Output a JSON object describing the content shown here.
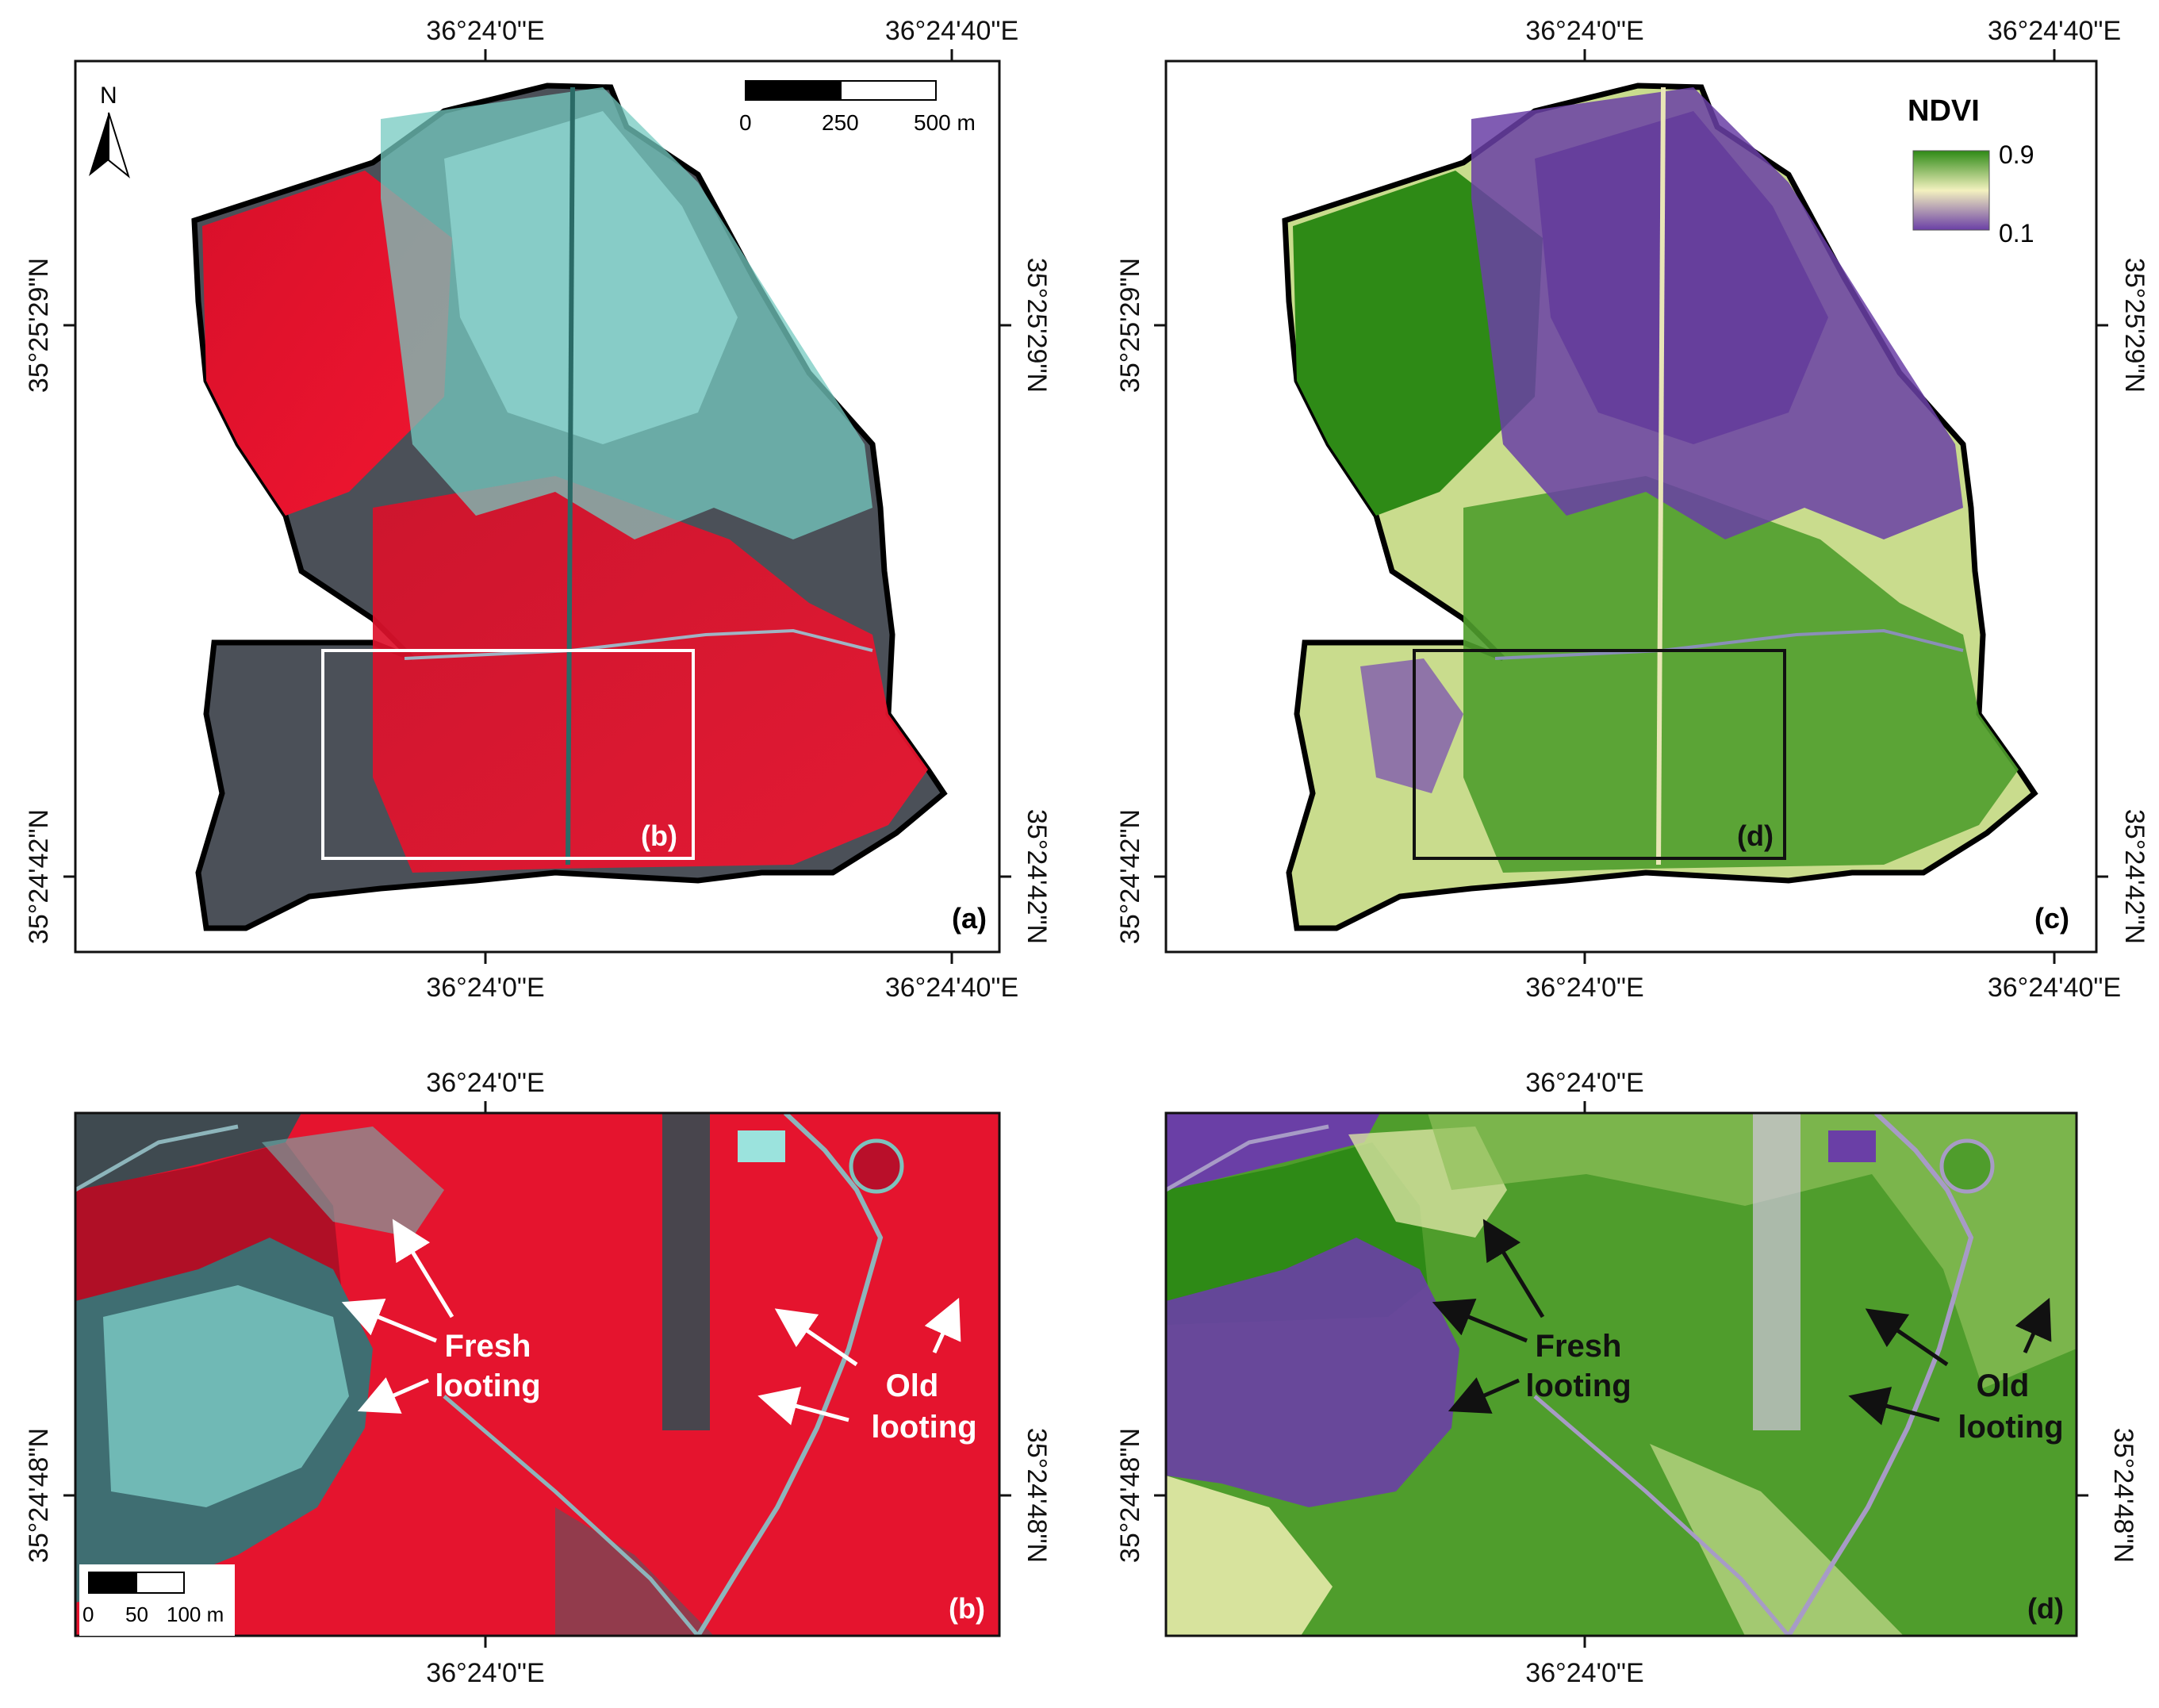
{
  "panels": {
    "a": {
      "label": "(a)",
      "top_ticks": [
        "36°24'0\"E",
        "36°24'40\"E"
      ],
      "bottom_ticks": [
        "36°24'0\"E",
        "36°24'40\"E"
      ],
      "left_ticks": [
        "35°25'29\"N",
        "35°24'42\"N"
      ],
      "right_ticks": [
        "35°25'29\"N",
        "35°24'42\"N"
      ],
      "north_arrow": "N",
      "scalebar": {
        "ticks": [
          "0",
          "250",
          "500 m"
        ]
      },
      "inset_label": "(b)"
    },
    "b": {
      "label": "(b)",
      "top_ticks": [
        "36°24'0\"E"
      ],
      "bottom_ticks": [
        "36°24'0\"E"
      ],
      "left_ticks": [
        "35°24'48\"N"
      ],
      "right_ticks": [
        "35°24'48\"N"
      ],
      "scalebar": {
        "ticks": [
          "0",
          "50",
          "100 m"
        ]
      },
      "annotations": {
        "fresh": [
          "Fresh",
          "looting"
        ],
        "old": [
          "Old",
          "looting"
        ]
      }
    },
    "c": {
      "label": "(c)",
      "top_ticks": [
        "36°24'0\"E",
        "36°24'40\"E"
      ],
      "bottom_ticks": [
        "36°24'0\"E",
        "36°24'40\"E"
      ],
      "left_ticks": [
        "35°25'29\"N",
        "35°24'42\"N"
      ],
      "right_ticks": [
        "35°25'29\"N",
        "35°24'42\"N"
      ],
      "inset_label": "(d)",
      "legend": {
        "title": "NDVI",
        "max": "0.9",
        "min": "0.1"
      }
    },
    "d": {
      "label": "(d)",
      "top_ticks": [
        "36°24'0\"E"
      ],
      "bottom_ticks": [
        "36°24'0\"E"
      ],
      "left_ticks": [
        "35°24'48\"N"
      ],
      "right_ticks": [
        "35°24'48\"N"
      ],
      "annotations": {
        "fresh": [
          "Fresh",
          "looting"
        ],
        "old": [
          "Old",
          "looting"
        ]
      }
    }
  },
  "colors": {
    "false_color_red": "#e8102a",
    "false_color_dark": "#4a4f55",
    "false_color_cyan": "#8fe3dc",
    "ndvi_high": "#2e8a16",
    "ndvi_mid": "#f3f1bf",
    "ndvi_low": "#6a3fa6"
  }
}
